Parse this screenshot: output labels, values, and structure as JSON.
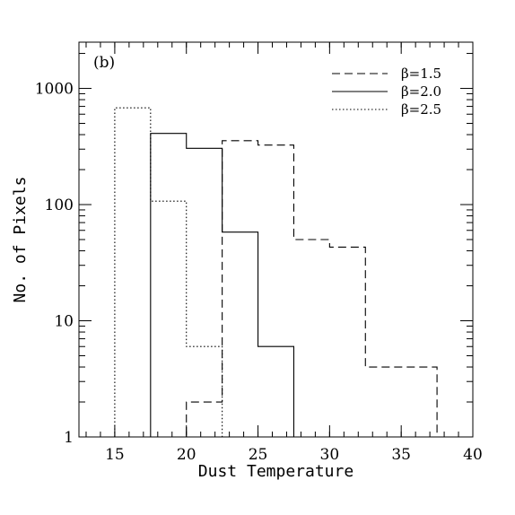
{
  "chart_data": {
    "type": "histogram",
    "panel_label": "(b)",
    "xlabel": "Dust Temperature",
    "ylabel": "No. of Pixels",
    "xlim": [
      12.5,
      40
    ],
    "ylim": [
      1,
      2500
    ],
    "yscale": "log",
    "grid": false,
    "legend_position": "top-right",
    "x_ticks": [
      15,
      20,
      25,
      30,
      35,
      40
    ],
    "y_ticks": [
      1,
      10,
      100,
      1000
    ],
    "series": [
      {
        "name": "β=1.5",
        "line_style": "dashed",
        "bins": [
          {
            "x0": 17.5,
            "x1": 20.0,
            "value": 1
          },
          {
            "x0": 20.0,
            "x1": 22.5,
            "value": 2
          },
          {
            "x0": 22.5,
            "x1": 25.0,
            "value": 355
          },
          {
            "x0": 25.0,
            "x1": 27.5,
            "value": 325
          },
          {
            "x0": 27.5,
            "x1": 30.0,
            "value": 50
          },
          {
            "x0": 30.0,
            "x1": 32.5,
            "value": 43
          },
          {
            "x0": 32.5,
            "x1": 35.0,
            "value": 4
          },
          {
            "x0": 35.0,
            "x1": 37.5,
            "value": 4
          }
        ]
      },
      {
        "name": "β=2.0",
        "line_style": "solid",
        "bins": [
          {
            "x0": 17.5,
            "x1": 20.0,
            "value": 410
          },
          {
            "x0": 20.0,
            "x1": 22.5,
            "value": 305
          },
          {
            "x0": 22.5,
            "x1": 25.0,
            "value": 58
          },
          {
            "x0": 25.0,
            "x1": 27.5,
            "value": 6
          }
        ]
      },
      {
        "name": "β=2.5",
        "line_style": "dotted",
        "bins": [
          {
            "x0": 15.0,
            "x1": 17.5,
            "value": 680
          },
          {
            "x0": 17.5,
            "x1": 20.0,
            "value": 107
          },
          {
            "x0": 20.0,
            "x1": 22.5,
            "value": 6
          }
        ]
      }
    ]
  }
}
